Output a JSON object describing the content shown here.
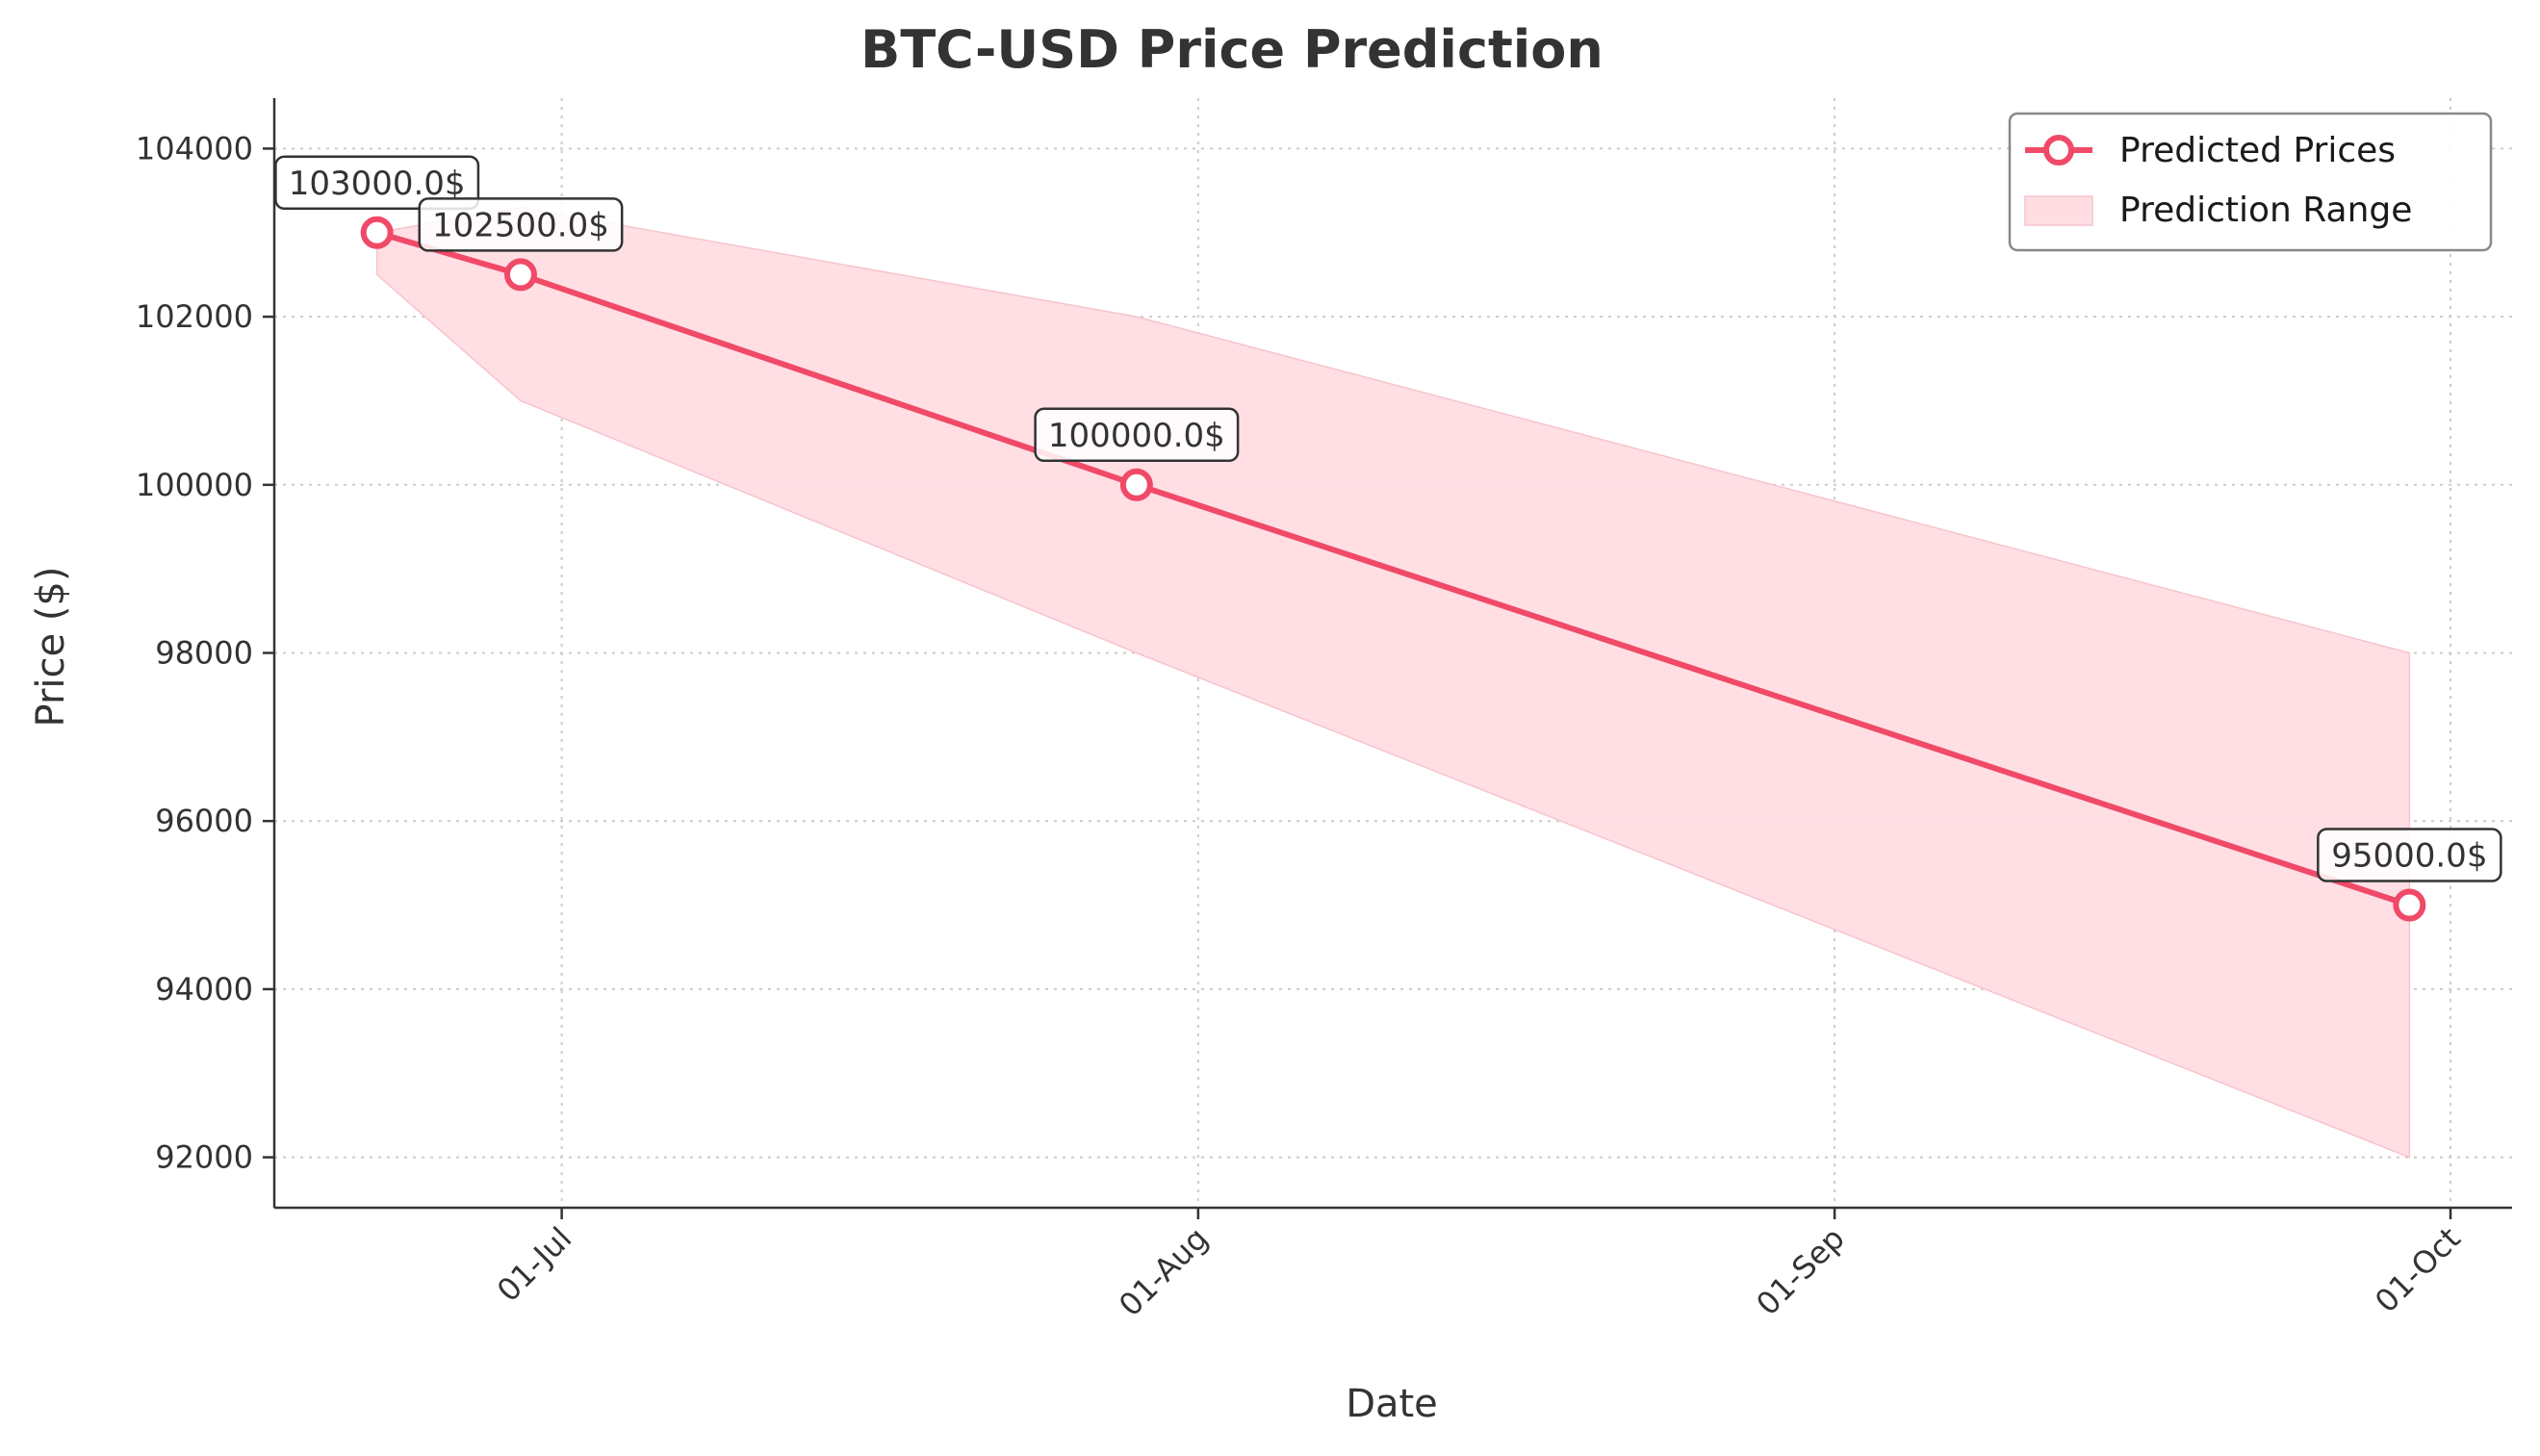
{
  "chart_data": {
    "type": "line",
    "title": "BTC-USD Price Prediction",
    "xlabel": "Date",
    "ylabel": "Price ($)",
    "x_ticks": [
      {
        "date": "2025-07-01",
        "label": "01-Jul"
      },
      {
        "date": "2025-08-01",
        "label": "01-Aug"
      },
      {
        "date": "2025-09-01",
        "label": "01-Sep"
      },
      {
        "date": "2025-10-01",
        "label": "01-Oct"
      }
    ],
    "y_ticks": [
      92000,
      94000,
      96000,
      98000,
      100000,
      102000,
      104000
    ],
    "xlim": [
      "2025-06-17",
      "2025-10-04"
    ],
    "ylim": [
      91400,
      104600
    ],
    "grid": true,
    "legend_position": "top-right",
    "series": [
      {
        "name": "Predicted Prices",
        "color": "#f04a68",
        "x": [
          "2025-06-22",
          "2025-06-29",
          "2025-07-29",
          "2025-09-29"
        ],
        "y": [
          103000,
          102500,
          100000,
          95000
        ],
        "labels": [
          "103000.0$",
          "102500.0$",
          "100000.0$",
          "95000.0$"
        ]
      }
    ],
    "range": {
      "name": "Prediction Range",
      "color": "#ffdde3",
      "x": [
        "2025-06-22",
        "2025-06-29",
        "2025-07-29",
        "2025-09-29"
      ],
      "lower": [
        102500,
        101000,
        98000,
        92000
      ],
      "upper": [
        103000,
        103300,
        102000,
        98000
      ]
    }
  }
}
